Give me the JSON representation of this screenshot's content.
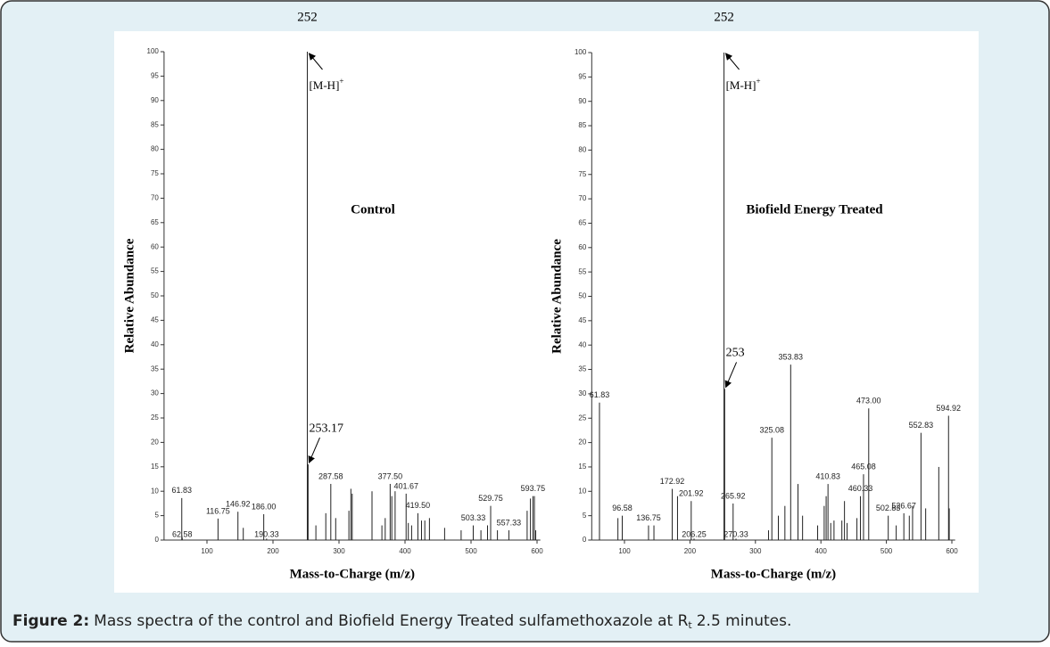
{
  "chart_data": [
    {
      "type": "spectrum",
      "title": "Control",
      "x_label": "Mass-to-Charge (m/z)",
      "y_label": "Relative Abundance",
      "color": "#222222",
      "xlim": [
        35,
        605
      ],
      "ylim": [
        0,
        100
      ],
      "xticks": [
        100,
        200,
        300,
        400,
        500,
        600
      ],
      "yticks": [
        0,
        5,
        10,
        15,
        20,
        25,
        30,
        35,
        40,
        45,
        50,
        55,
        60,
        65,
        70,
        75,
        80,
        85,
        90,
        95,
        100
      ],
      "x": [
        61.83,
        62.58,
        116.75,
        146.92,
        155,
        186,
        190.33,
        252,
        253.17,
        265,
        280,
        287.58,
        295,
        315,
        318,
        320,
        350,
        365,
        370,
        377.5,
        380,
        385,
        401.67,
        405,
        410,
        419.5,
        425,
        430,
        437,
        460,
        485,
        503.33,
        515,
        525,
        529.75,
        540,
        557.33,
        585,
        590,
        593.75,
        596,
        598
      ],
      "values": [
        8.6,
        0.5,
        4.4,
        5.8,
        2.5,
        5.3,
        0.3,
        100,
        15.5,
        3,
        5.5,
        11.5,
        4.5,
        6,
        10.5,
        9.5,
        10,
        3,
        4.5,
        11.5,
        9,
        10,
        9.5,
        3.5,
        3,
        5.5,
        4,
        4,
        4.5,
        2.5,
        2,
        3,
        2,
        3,
        7,
        2,
        2,
        6,
        8.5,
        9,
        9,
        2
      ],
      "labels": [
        "61.83",
        "62.58",
        "116.75",
        "146.92",
        null,
        "186.00",
        "190.33",
        null,
        null,
        null,
        null,
        "287.58",
        null,
        null,
        null,
        null,
        null,
        null,
        null,
        "377.50",
        null,
        null,
        "401.67",
        null,
        null,
        "419.50",
        null,
        null,
        null,
        null,
        null,
        "503.33",
        null,
        null,
        "529.75",
        null,
        "557.33",
        null,
        null,
        "593.75",
        null,
        null
      ],
      "annotations": {
        "parent": "252",
        "ion": "[M-H]",
        "charge": "+",
        "isotope": "253.17"
      }
    },
    {
      "type": "spectrum",
      "title": "Biofield Energy Treated",
      "x_label": "Mass-to-Charge (m/z)",
      "y_label": "Relative Abundance",
      "color": "#222222",
      "xlim": [
        50,
        605
      ],
      "ylim": [
        0,
        100
      ],
      "xticks": [
        100,
        200,
        300,
        400,
        500,
        600
      ],
      "yticks": [
        0,
        5,
        10,
        15,
        20,
        25,
        30,
        35,
        40,
        45,
        50,
        55,
        60,
        65,
        70,
        75,
        80,
        85,
        90,
        95,
        100
      ],
      "x": [
        61.83,
        90,
        96.58,
        136.75,
        145,
        172.92,
        181,
        201.92,
        206.25,
        252,
        253,
        265.92,
        270.33,
        320,
        325.08,
        335,
        345,
        353.83,
        365,
        372,
        395,
        405,
        408,
        410.83,
        415,
        420,
        432,
        436,
        440,
        455,
        460.33,
        465.08,
        473,
        502.83,
        515,
        526.67,
        535,
        540,
        552.83,
        560,
        580,
        594.92,
        596
      ],
      "values": [
        28.2,
        4.5,
        5,
        3,
        3,
        10.5,
        9,
        8,
        0.3,
        100,
        31,
        7.5,
        0.3,
        2,
        21,
        5,
        7,
        36,
        11.5,
        5,
        3,
        7,
        9,
        11.5,
        3.5,
        4,
        4,
        8,
        3.5,
        4.5,
        9,
        13.5,
        27,
        5,
        3,
        5.5,
        5,
        7,
        22,
        6.5,
        15,
        25.5,
        6.5
      ],
      "labels": [
        "61.83",
        null,
        "96.58",
        "136.75",
        null,
        "172.92",
        null,
        "201.92",
        "206.25",
        null,
        null,
        "265.92",
        "270.33",
        null,
        "325.08",
        null,
        null,
        "353.83",
        null,
        null,
        null,
        null,
        null,
        "410.83",
        null,
        null,
        null,
        null,
        null,
        null,
        "460.33",
        "465.08",
        "473.00",
        "502.83",
        null,
        "526.67",
        null,
        null,
        "552.83",
        null,
        null,
        "594.92",
        null
      ],
      "annotations": {
        "parent": "252",
        "ion": "[M-H]",
        "charge": "+",
        "isotope": "253"
      }
    }
  ],
  "caption": {
    "label": "Figure 2:",
    "text": "Mass spectra of the control and Biofield Energy Treated sulfamethoxazole at R",
    "subscript": "t",
    "text_after": "2.5 minutes."
  }
}
